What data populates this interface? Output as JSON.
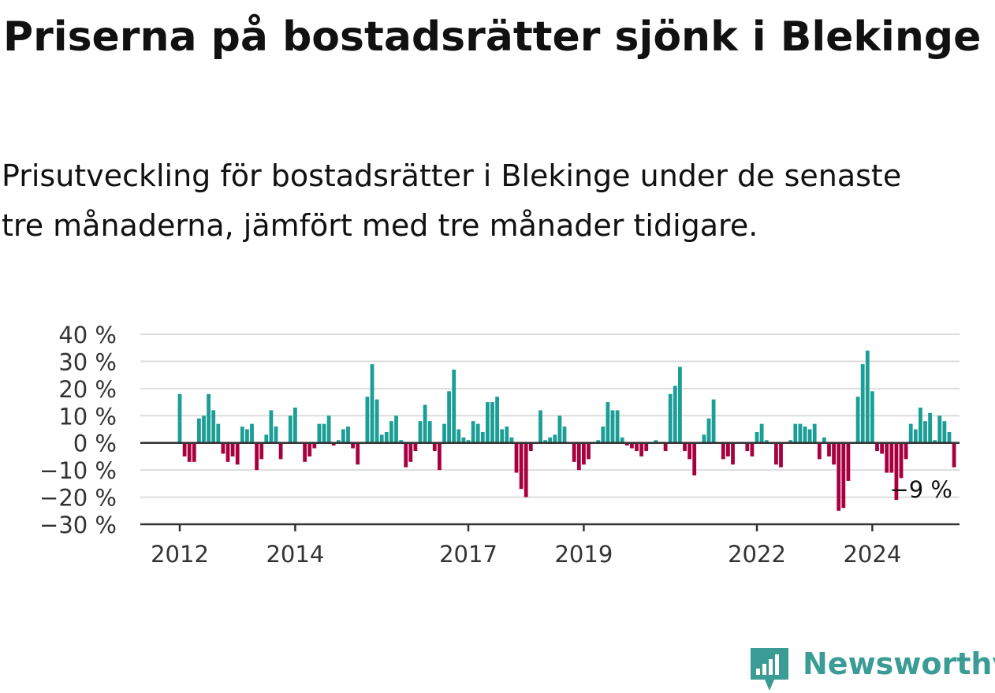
{
  "title": "Priserna på bostadsrätter sjönk i Blekinge",
  "subtitle": "Prisutveckling för bostadsrätter i Blekinge under de senaste tre månaderna, jämfört med tre månader tidigare.",
  "brand": {
    "name": "Newsworthy",
    "icon": "newsworthy-logo-icon",
    "color": "#3a9c94"
  },
  "colors": {
    "positive": "#1a9e96",
    "negative": "#a8003f",
    "grid": "#dddddd",
    "axis": "#333333"
  },
  "chart_data": {
    "type": "bar",
    "title": "Priserna på bostadsrätter sjönk i Blekinge",
    "xlabel": "",
    "ylabel": "",
    "ylim": [
      -30,
      40
    ],
    "y_ticks": [
      40,
      30,
      20,
      10,
      0,
      -10,
      -20,
      -30
    ],
    "y_tick_labels": [
      "40 %",
      "30 %",
      "20 %",
      "10 %",
      "0 %",
      "−10 %",
      "−20 %",
      "−30 %"
    ],
    "x_ticks": [
      2012,
      2014,
      2017,
      2019,
      2022,
      2024
    ],
    "x_tick_labels": [
      "2012",
      "2014",
      "2017",
      "2019",
      "2022",
      "2024"
    ],
    "grid": true,
    "start": "2012-01",
    "frequency": "monthly",
    "values": [
      18,
      -5,
      -7,
      -7,
      9,
      10,
      18,
      12,
      7,
      -4,
      -7,
      -5,
      -8,
      6,
      5,
      7,
      -10,
      -6,
      3,
      12,
      6,
      -6,
      0,
      10,
      13,
      0,
      -7,
      -5,
      -2,
      7,
      7,
      10,
      -1,
      1,
      5,
      6,
      -2,
      -8,
      0,
      17,
      29,
      16,
      3,
      4,
      8,
      10,
      1,
      -9,
      -7,
      -3,
      8,
      14,
      8,
      -3,
      -10,
      7,
      19,
      27,
      5,
      2,
      1,
      8,
      7,
      4,
      15,
      15,
      17,
      5,
      6,
      2,
      -11,
      -17,
      -20,
      -3,
      0,
      12,
      1,
      2,
      3,
      10,
      6,
      0,
      -7,
      -10,
      -8,
      -6,
      0,
      1,
      6,
      15,
      12,
      12,
      2,
      -1,
      -2,
      -3,
      -5,
      -3,
      0,
      1,
      0,
      -3,
      18,
      21,
      28,
      -3,
      -6,
      -12,
      0,
      3,
      9,
      16,
      0,
      -6,
      -5,
      -8,
      0,
      0,
      -3,
      -5,
      4,
      7,
      1,
      0,
      -8,
      -9,
      0,
      1,
      7,
      7,
      6,
      5,
      7,
      -6,
      2,
      -5,
      -8,
      -25,
      -24,
      -14,
      0,
      17,
      29,
      34,
      19,
      -3,
      -4,
      -11,
      -11,
      -21,
      -13,
      -6,
      7,
      5,
      13,
      8,
      11,
      1,
      10,
      8,
      4,
      -9
    ],
    "last_value_label": "−9 %"
  }
}
